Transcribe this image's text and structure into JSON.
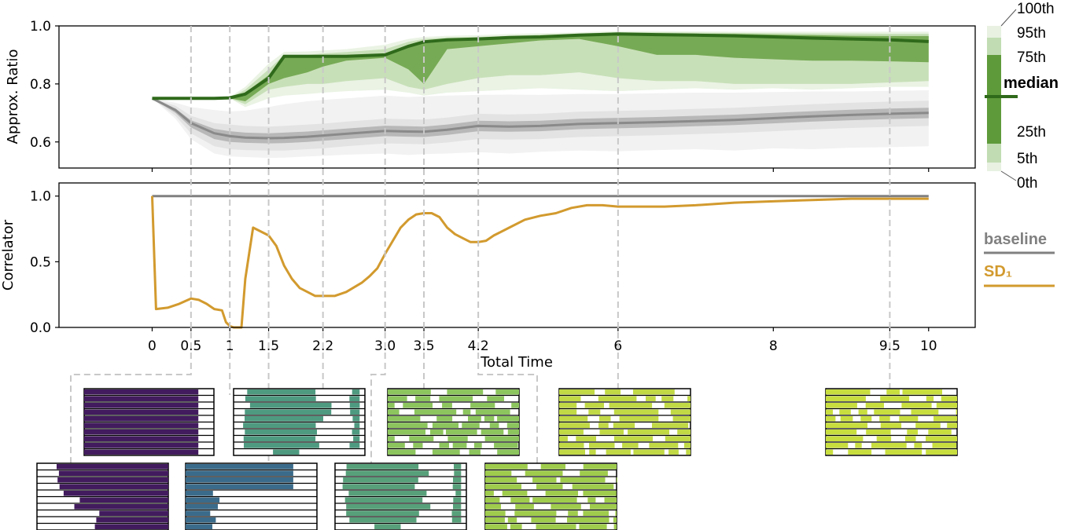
{
  "chart_data": [
    {
      "type": "area",
      "ylabel": "Approx. Ratio",
      "xlim": [
        -1.2,
        10.6
      ],
      "ylim": [
        0.51,
        1.0
      ],
      "yticks": [
        0.6,
        0.8,
        1.0
      ],
      "ytick_labels": [
        "0.6",
        "0.8",
        "1.0"
      ],
      "x": [
        0,
        0.3,
        0.5,
        0.8,
        1.0,
        1.2,
        1.5,
        1.7,
        2.0,
        2.2,
        2.5,
        3.0,
        3.3,
        3.5,
        3.8,
        4.2,
        4.6,
        5.0,
        5.5,
        6.0,
        6.5,
        7.0,
        7.5,
        8.0,
        8.5,
        9.0,
        9.5,
        10.0
      ],
      "series": [
        {
          "role": "baseline",
          "median": [
            0.75,
            0.71,
            0.665,
            0.63,
            0.62,
            0.615,
            0.613,
            0.614,
            0.618,
            0.622,
            0.628,
            0.638,
            0.636,
            0.635,
            0.642,
            0.655,
            0.653,
            0.655,
            0.662,
            0.665,
            0.668,
            0.672,
            0.676,
            0.682,
            0.688,
            0.693,
            0.697,
            0.7
          ],
          "p25": [
            0.75,
            0.7,
            0.65,
            0.61,
            0.6,
            0.597,
            0.595,
            0.596,
            0.6,
            0.604,
            0.61,
            0.62,
            0.618,
            0.617,
            0.624,
            0.637,
            0.635,
            0.637,
            0.644,
            0.647,
            0.65,
            0.654,
            0.658,
            0.664,
            0.67,
            0.675,
            0.679,
            0.682
          ],
          "p75": [
            0.75,
            0.715,
            0.675,
            0.645,
            0.637,
            0.632,
            0.63,
            0.632,
            0.636,
            0.64,
            0.646,
            0.656,
            0.654,
            0.653,
            0.66,
            0.673,
            0.671,
            0.673,
            0.68,
            0.683,
            0.686,
            0.69,
            0.694,
            0.7,
            0.706,
            0.711,
            0.715,
            0.718
          ],
          "p5": [
            0.75,
            0.69,
            0.63,
            0.585,
            0.575,
            0.572,
            0.57,
            0.57,
            0.575,
            0.578,
            0.585,
            0.595,
            0.593,
            0.592,
            0.598,
            0.61,
            0.608,
            0.61,
            0.617,
            0.62,
            0.623,
            0.627,
            0.631,
            0.637,
            0.643,
            0.648,
            0.652,
            0.655
          ],
          "p95": [
            0.75,
            0.725,
            0.69,
            0.665,
            0.66,
            0.655,
            0.653,
            0.655,
            0.66,
            0.663,
            0.67,
            0.68,
            0.678,
            0.677,
            0.684,
            0.697,
            0.695,
            0.697,
            0.704,
            0.707,
            0.71,
            0.714,
            0.718,
            0.724,
            0.73,
            0.735,
            0.739,
            0.742
          ],
          "min": [
            0.75,
            0.68,
            0.61,
            0.56,
            0.55,
            0.548,
            0.545,
            0.546,
            0.55,
            0.552,
            0.556,
            0.56,
            0.555,
            0.558,
            0.56,
            0.565,
            0.56,
            0.566,
            0.57,
            0.568,
            0.572,
            0.575,
            0.57,
            0.578,
            0.575,
            0.58,
            0.582,
            0.585
          ],
          "max": [
            0.75,
            0.735,
            0.72,
            0.71,
            0.705,
            0.708,
            0.72,
            0.73,
            0.74,
            0.745,
            0.75,
            0.76,
            0.755,
            0.757,
            0.76,
            0.762,
            0.763,
            0.762,
            0.765,
            0.765,
            0.768,
            0.77,
            0.77,
            0.772,
            0.774,
            0.774,
            0.776,
            0.778
          ]
        },
        {
          "role": "SD1",
          "median": [
            0.75,
            0.75,
            0.75,
            0.75,
            0.752,
            0.765,
            0.82,
            0.895,
            0.895,
            0.895,
            0.895,
            0.9,
            0.93,
            0.945,
            0.952,
            0.955,
            0.96,
            0.962,
            0.968,
            0.972,
            0.97,
            0.968,
            0.966,
            0.962,
            0.958,
            0.955,
            0.952,
            0.946
          ],
          "p25": [
            0.75,
            0.75,
            0.75,
            0.75,
            0.75,
            0.74,
            0.8,
            0.82,
            0.84,
            0.86,
            0.88,
            0.89,
            0.85,
            0.8,
            0.92,
            0.93,
            0.94,
            0.95,
            0.955,
            0.93,
            0.9,
            0.9,
            0.89,
            0.885,
            0.88,
            0.88,
            0.878,
            0.875
          ],
          "p75": [
            0.75,
            0.75,
            0.75,
            0.75,
            0.752,
            0.77,
            0.83,
            0.895,
            0.895,
            0.895,
            0.895,
            0.905,
            0.935,
            0.95,
            0.955,
            0.958,
            0.963,
            0.965,
            0.97,
            0.975,
            0.974,
            0.973,
            0.972,
            0.97,
            0.968,
            0.966,
            0.965,
            0.965
          ],
          "p5": [
            0.75,
            0.75,
            0.75,
            0.75,
            0.75,
            0.73,
            0.78,
            0.79,
            0.8,
            0.8,
            0.81,
            0.82,
            0.79,
            0.78,
            0.8,
            0.82,
            0.83,
            0.83,
            0.84,
            0.82,
            0.81,
            0.81,
            0.8,
            0.8,
            0.8,
            0.8,
            0.805,
            0.81
          ],
          "p95": [
            0.75,
            0.75,
            0.75,
            0.75,
            0.753,
            0.78,
            0.85,
            0.9,
            0.9,
            0.905,
            0.91,
            0.92,
            0.945,
            0.955,
            0.96,
            0.962,
            0.966,
            0.97,
            0.974,
            0.978,
            0.978,
            0.977,
            0.976,
            0.975,
            0.974,
            0.974,
            0.973,
            0.973
          ],
          "min": [
            0.75,
            0.75,
            0.75,
            0.75,
            0.75,
            0.72,
            0.75,
            0.76,
            0.765,
            0.77,
            0.775,
            0.78,
            0.77,
            0.76,
            0.77,
            0.775,
            0.78,
            0.785,
            0.78,
            0.775,
            0.78,
            0.785,
            0.78,
            0.785,
            0.78,
            0.785,
            0.79,
            0.79
          ],
          "max": [
            0.75,
            0.75,
            0.75,
            0.75,
            0.755,
            0.79,
            0.87,
            0.91,
            0.912,
            0.915,
            0.92,
            0.935,
            0.955,
            0.962,
            0.966,
            0.968,
            0.972,
            0.975,
            0.978,
            0.982,
            0.982,
            0.981,
            0.98,
            0.98,
            0.98,
            0.98,
            0.98,
            0.98
          ]
        }
      ]
    },
    {
      "type": "line",
      "xlabel": "Total Time",
      "ylabel": "Correlator",
      "xlim": [
        -1.2,
        10.6
      ],
      "ylim": [
        0.0,
        1.1
      ],
      "yticks": [
        0.0,
        0.5,
        1.0
      ],
      "ytick_labels": [
        "0.0",
        "0.5",
        "1.0"
      ],
      "xticks": [
        0,
        0.5,
        1,
        1.5,
        2.2,
        3.0,
        3.5,
        4.2,
        6,
        8,
        9.5,
        10
      ],
      "xtick_labels": [
        "0",
        "0.5",
        "1",
        "1.5",
        "2.2",
        "3.0",
        "3.5",
        "4.2",
        "6",
        "8",
        "9.5",
        "10"
      ],
      "series": [
        {
          "name": "baseline",
          "x": [
            0,
            10
          ],
          "values": [
            1.0,
            1.0
          ]
        },
        {
          "name": "SD₁",
          "x": [
            0,
            0.05,
            0.2,
            0.35,
            0.5,
            0.6,
            0.7,
            0.8,
            0.9,
            0.95,
            1.0,
            1.05,
            1.1,
            1.15,
            1.2,
            1.3,
            1.4,
            1.5,
            1.6,
            1.7,
            1.8,
            1.9,
            2.0,
            2.1,
            2.2,
            2.35,
            2.5,
            2.7,
            2.8,
            2.9,
            3.0,
            3.1,
            3.2,
            3.3,
            3.4,
            3.5,
            3.6,
            3.7,
            3.8,
            3.9,
            4.0,
            4.1,
            4.2,
            4.3,
            4.4,
            4.6,
            4.8,
            5.0,
            5.2,
            5.4,
            5.6,
            5.8,
            6.0,
            6.3,
            6.6,
            7.0,
            7.5,
            8.0,
            8.5,
            9.0,
            9.5,
            10.0
          ],
          "values": [
            1.0,
            0.14,
            0.15,
            0.18,
            0.22,
            0.21,
            0.18,
            0.14,
            0.13,
            0.04,
            0.01,
            0.0,
            0.0,
            0.0,
            0.37,
            0.76,
            0.73,
            0.7,
            0.62,
            0.47,
            0.37,
            0.3,
            0.27,
            0.24,
            0.24,
            0.24,
            0.27,
            0.34,
            0.39,
            0.45,
            0.56,
            0.66,
            0.76,
            0.82,
            0.86,
            0.87,
            0.87,
            0.84,
            0.76,
            0.71,
            0.68,
            0.65,
            0.65,
            0.66,
            0.7,
            0.76,
            0.82,
            0.85,
            0.87,
            0.91,
            0.93,
            0.93,
            0.92,
            0.92,
            0.92,
            0.93,
            0.95,
            0.96,
            0.97,
            0.98,
            0.98,
            0.98
          ]
        }
      ]
    }
  ],
  "legend": {
    "percentiles": [
      "100th",
      "95th",
      "75th",
      "median",
      "25th",
      "5th",
      "0th"
    ],
    "series": [
      "baseline",
      "SD₁"
    ]
  },
  "snapshots": [
    {
      "time": 0.5,
      "color": "#421b5e",
      "fill": [
        0.97,
        0.98,
        0.97,
        0.96,
        0.97,
        0.98,
        0.97,
        0.96,
        0.97,
        0.98
      ],
      "fill2": [
        0.85,
        0.8,
        0.78,
        0.76,
        0.7,
        0.72,
        0.68,
        0.65,
        0.6,
        0.55
      ]
    },
    {
      "time": 1,
      "color": "#421b5e",
      "fill": [
        0.88,
        0.88,
        0.88,
        0.88,
        0.88,
        0.88,
        0.88,
        0.88,
        0.88,
        0.88
      ]
    },
    {
      "time": 1.5,
      "color": "#3b6b8a"
    },
    {
      "time": 2.2,
      "color": "#4e9a80"
    },
    {
      "time": 3.0,
      "color": "#57a07a"
    },
    {
      "time": 3.5,
      "color": "#8cc55d"
    },
    {
      "time": 4.2,
      "color": "#9fcc4c"
    },
    {
      "time": 6,
      "color": "#c0d945"
    },
    {
      "time": 9.5,
      "color": "#c8de3f"
    }
  ]
}
